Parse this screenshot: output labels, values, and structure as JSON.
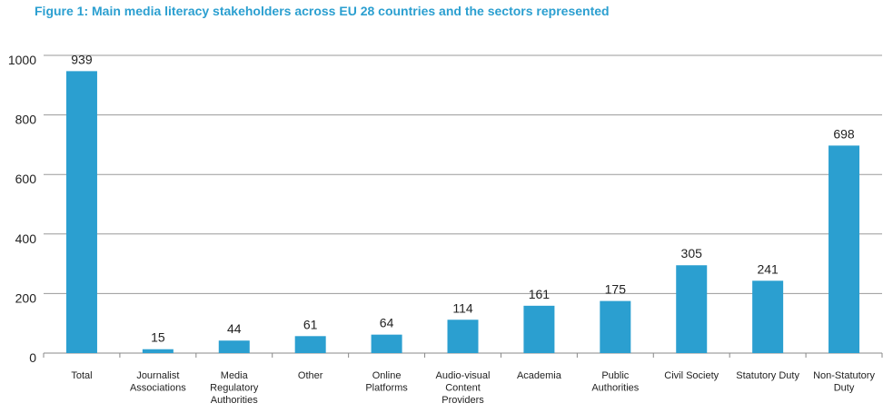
{
  "chart_data": {
    "type": "bar",
    "title": "Figure 1: Main media literacy stakeholders across EU 28 countries and the sectors represented",
    "xlabel": "",
    "ylabel": "",
    "categories": [
      "Total",
      "Journalist Associations",
      "Media Regulatory Authorities",
      "Other",
      "Online Platforms",
      "Audio-visual Content Providers",
      "Academia",
      "Public Authorities",
      "Civil Society",
      "Statutory Duty",
      "Non-Statutory Duty"
    ],
    "category_lines": [
      [
        "Total"
      ],
      [
        "Journalist",
        "Associations"
      ],
      [
        "Media",
        "Regulatory",
        "Authorities"
      ],
      [
        "Other"
      ],
      [
        "Online",
        "Platforms"
      ],
      [
        "Audio-visual",
        "Content",
        "Providers"
      ],
      [
        "Academia"
      ],
      [
        "Public",
        "Authorities"
      ],
      [
        "Civil Society"
      ],
      [
        "Statutory Duty"
      ],
      [
        "Non-Statutory",
        "Duty"
      ]
    ],
    "values": [
      939,
      15,
      44,
      61,
      64,
      114,
      161,
      175,
      305,
      241,
      698
    ],
    "bar_heights": [
      947,
      13,
      42,
      57,
      62,
      112,
      159,
      175,
      295,
      243,
      697
    ],
    "yticks": [
      0,
      200,
      400,
      600,
      800,
      1000
    ],
    "ylim": [
      0,
      1000
    ],
    "grid": true,
    "legend": "none",
    "bar_color": "#2b9fd0"
  }
}
